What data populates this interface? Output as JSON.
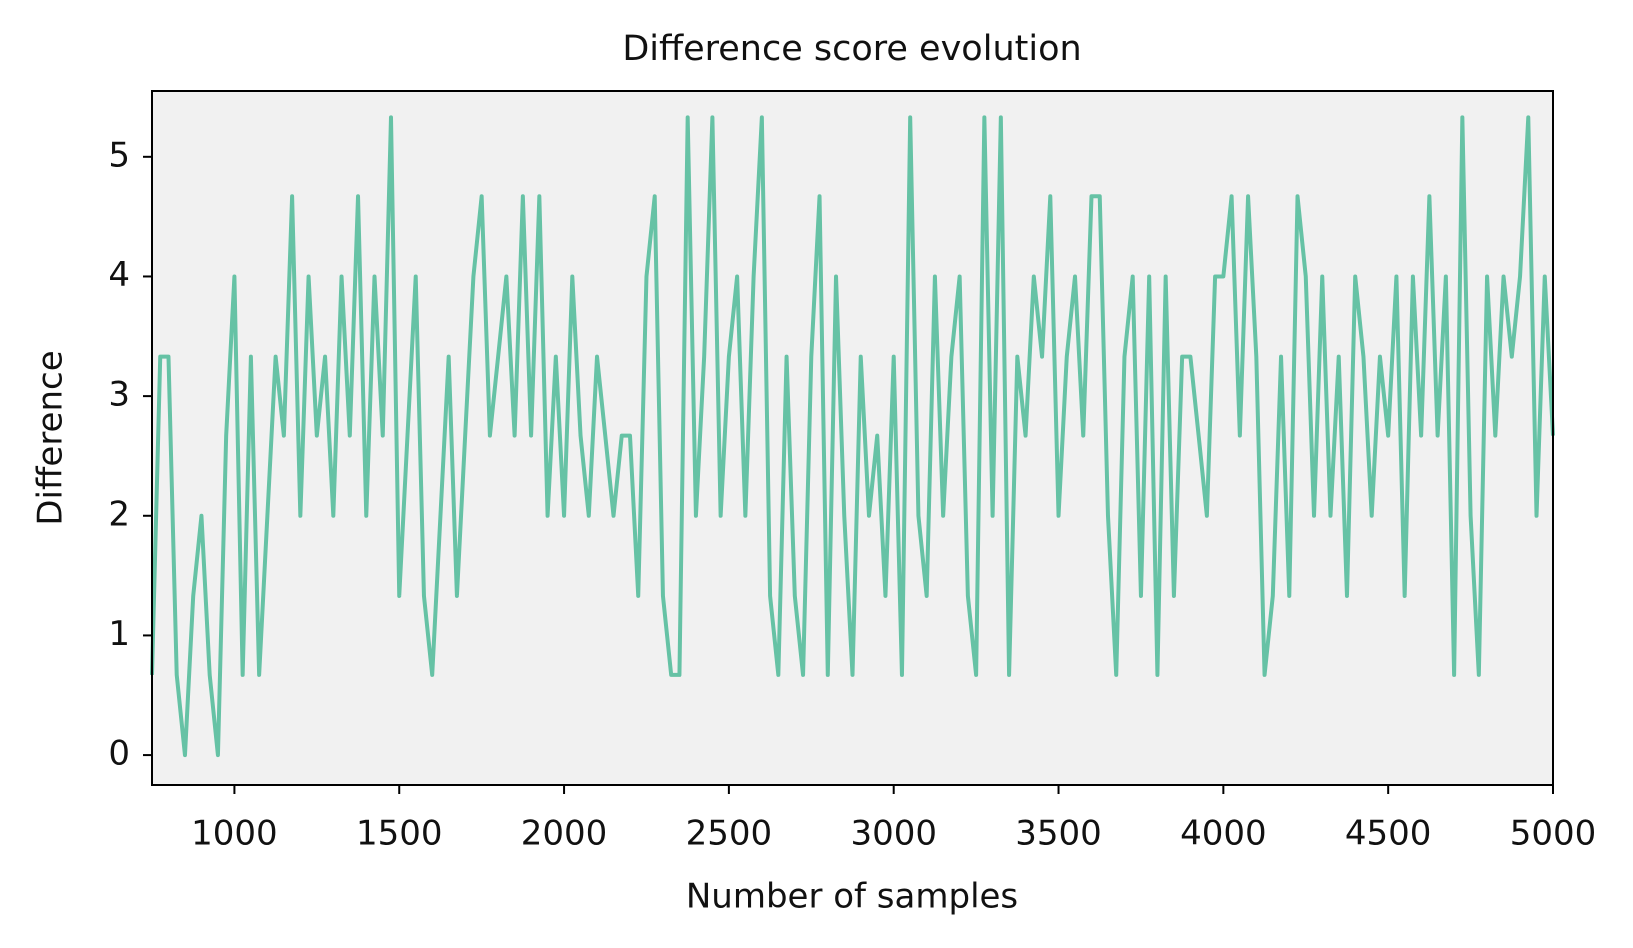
{
  "chart_data": {
    "type": "line",
    "title": "Difference score evolution",
    "x_label": "Number of samples",
    "y_label": "Difference",
    "xlim": [
      750,
      5000
    ],
    "ylim": [
      -0.25,
      5.55
    ],
    "xticks": [
      1000,
      1500,
      2000,
      2500,
      3000,
      3500,
      4000,
      4500,
      5000
    ],
    "yticks": [
      0,
      1,
      2,
      3,
      4,
      5
    ],
    "grid": false,
    "background": "#f1f1f1",
    "x": [
      750,
      775,
      800,
      825,
      850,
      875,
      900,
      925,
      950,
      975,
      1000,
      1025,
      1050,
      1075,
      1100,
      1125,
      1150,
      1175,
      1200,
      1225,
      1250,
      1275,
      1300,
      1325,
      1350,
      1375,
      1400,
      1425,
      1450,
      1475,
      1500,
      1525,
      1550,
      1575,
      1600,
      1625,
      1650,
      1675,
      1700,
      1725,
      1750,
      1775,
      1800,
      1825,
      1850,
      1875,
      1900,
      1925,
      1950,
      1975,
      2000,
      2025,
      2050,
      2075,
      2100,
      2125,
      2150,
      2175,
      2200,
      2225,
      2250,
      2275,
      2300,
      2325,
      2350,
      2375,
      2400,
      2425,
      2450,
      2475,
      2500,
      2525,
      2550,
      2575,
      2600,
      2625,
      2650,
      2675,
      2700,
      2725,
      2750,
      2775,
      2800,
      2825,
      2850,
      2875,
      2900,
      2925,
      2950,
      2975,
      3000,
      3025,
      3050,
      3075,
      3100,
      3125,
      3150,
      3175,
      3200,
      3225,
      3250,
      3275,
      3300,
      3325,
      3350,
      3375,
      3400,
      3425,
      3450,
      3475,
      3500,
      3525,
      3550,
      3575,
      3600,
      3625,
      3650,
      3675,
      3700,
      3725,
      3750,
      3775,
      3800,
      3825,
      3850,
      3875,
      3900,
      3925,
      3950,
      3975,
      4000,
      4025,
      4050,
      4075,
      4100,
      4125,
      4150,
      4175,
      4200,
      4225,
      4250,
      4275,
      4300,
      4325,
      4350,
      4375,
      4400,
      4425,
      4450,
      4475,
      4500,
      4525,
      4550,
      4575,
      4600,
      4625,
      4650,
      4675,
      4700,
      4725,
      4750,
      4775,
      4800,
      4825,
      4850,
      4875,
      4900,
      4925,
      4950,
      4975,
      5000
    ],
    "series": [
      {
        "name": "Difference",
        "color": "#66c2a5",
        "values": [
          0.67,
          3.33,
          3.33,
          0.67,
          0,
          1.33,
          2,
          0.67,
          0,
          2.67,
          4,
          0.67,
          3.33,
          0.67,
          2,
          3.33,
          2.67,
          4.67,
          2,
          4,
          2.67,
          3.33,
          2,
          4,
          2.67,
          4.67,
          2,
          4,
          2.67,
          5.33,
          1.33,
          2.67,
          4,
          1.33,
          0.67,
          2,
          3.33,
          1.33,
          2.67,
          4,
          4.67,
          2.67,
          3.33,
          4,
          2.67,
          4.67,
          2.67,
          4.67,
          2,
          3.33,
          2,
          4,
          2.67,
          2,
          3.33,
          2.67,
          2,
          2.67,
          2.67,
          1.33,
          4,
          4.67,
          1.33,
          0.67,
          0.67,
          5.33,
          2,
          3.33,
          5.33,
          2,
          3.33,
          4,
          2,
          4,
          5.33,
          1.33,
          0.67,
          3.33,
          1.33,
          0.67,
          3.33,
          4.67,
          0.67,
          4,
          2,
          0.67,
          3.33,
          2,
          2.67,
          1.33,
          3.33,
          0.67,
          5.33,
          2,
          1.33,
          4,
          2,
          3.33,
          4,
          1.33,
          0.67,
          5.33,
          2,
          5.33,
          0.67,
          3.33,
          2.67,
          4,
          3.33,
          4.67,
          2,
          3.33,
          4,
          2.67,
          4.67,
          4.67,
          2,
          0.67,
          3.33,
          4,
          1.33,
          4,
          0.67,
          4,
          1.33,
          3.33,
          3.33,
          2.67,
          2,
          4,
          4,
          4.67,
          2.67,
          4.67,
          3.33,
          0.67,
          1.33,
          3.33,
          1.33,
          4.67,
          4,
          2,
          4,
          2,
          3.33,
          1.33,
          4,
          3.33,
          2,
          3.33,
          2.67,
          4,
          1.33,
          4,
          2.67,
          4.67,
          2.67,
          4,
          0.67,
          5.33,
          2,
          0.67,
          4,
          2.67,
          4,
          3.33,
          4,
          5.33,
          2,
          4,
          2.67
        ]
      }
    ]
  }
}
